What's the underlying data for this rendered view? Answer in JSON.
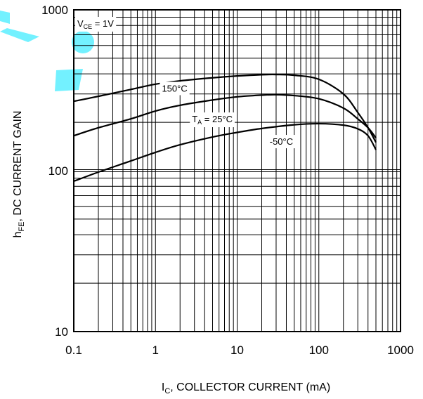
{
  "chart_data": {
    "type": "line",
    "title": "",
    "xlabel": {
      "main": "I",
      "sub": "C",
      "rest": ", COLLECTOR CURRENT (mA)"
    },
    "ylabel": {
      "main": "h",
      "sub": "FE",
      "rest": ", DC CURRENT GAIN"
    },
    "xscale": "log",
    "yscale": "log",
    "xlim": [
      0.1,
      1000
    ],
    "ylim": [
      10,
      1000
    ],
    "xticks": [
      {
        "value": 0.1,
        "label": "0.1"
      },
      {
        "value": 1,
        "label": "1"
      },
      {
        "value": 10,
        "label": "10"
      },
      {
        "value": 100,
        "label": "100"
      },
      {
        "value": 1000,
        "label": "1000"
      }
    ],
    "yticks": [
      {
        "value": 10,
        "label": "10"
      },
      {
        "value": 100,
        "label": "100"
      },
      {
        "value": 1000,
        "label": "1000"
      }
    ],
    "grid": true,
    "condition": {
      "main": "V",
      "sub": "CE",
      "rest": " = 1V"
    },
    "series": [
      {
        "label": {
          "main": "",
          "sub": "",
          "rest": "150°C"
        },
        "label_at": [
          1.2,
          310
        ],
        "x": [
          0.1,
          0.2,
          0.5,
          1,
          2,
          5,
          10,
          20,
          30,
          50,
          100,
          200,
          300,
          400,
          500
        ],
        "y": [
          270,
          290,
          320,
          345,
          362,
          378,
          388,
          395,
          396,
          392,
          370,
          300,
          230,
          185,
          150
        ]
      },
      {
        "label": {
          "main": "T",
          "sub": "A",
          "rest": " = 25°C"
        },
        "label_at": [
          2.8,
          200
        ],
        "x": [
          0.1,
          0.2,
          0.5,
          1,
          2,
          5,
          10,
          20,
          30,
          50,
          100,
          200,
          300,
          400,
          500
        ],
        "y": [
          165,
          185,
          210,
          235,
          255,
          275,
          288,
          295,
          297,
          293,
          280,
          245,
          210,
          185,
          160
        ]
      },
      {
        "label": {
          "main": "",
          "sub": "",
          "rest": "-50°C"
        },
        "label_at": [
          25,
          145
        ],
        "x": [
          0.1,
          0.2,
          0.5,
          1,
          2,
          5,
          10,
          20,
          50,
          100,
          200,
          300,
          400,
          500
        ],
        "y": [
          86,
          98,
          115,
          130,
          145,
          162,
          173,
          183,
          193,
          196,
          192,
          182,
          165,
          135
        ]
      }
    ]
  }
}
